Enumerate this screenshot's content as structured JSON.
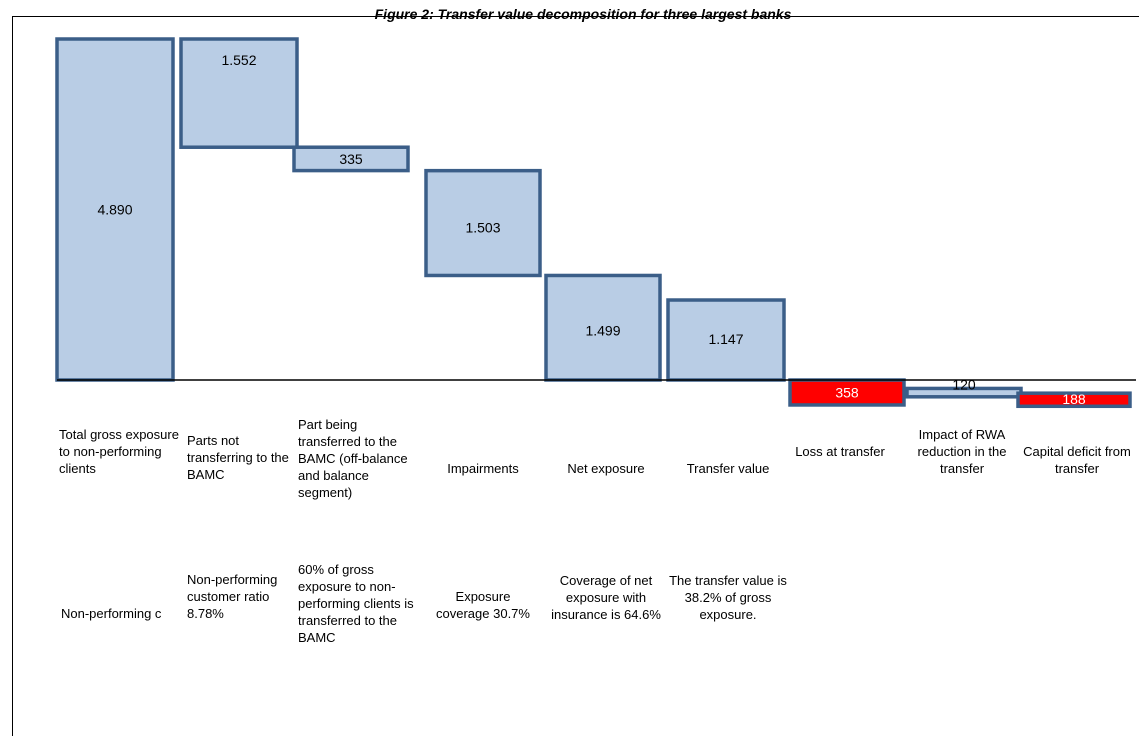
{
  "title": "Figure 2: Transfer value decomposition for three largest banks",
  "chart_data": {
    "type": "bar",
    "subtype": "waterfall",
    "categories": [
      "Total gross exposure to non-performing clients",
      "Parts not transferring to the BAMC",
      "Part being transferred to the BAMC (off-balance and balance segment)",
      "Impairments",
      "Net exposure",
      "Transfer value",
      "Loss at transfer",
      "Impact of RWA reduction in the transfer",
      "Capital deficit from transfer"
    ],
    "notes": [
      "Non-performing c",
      "Non-performing customer ratio 8.78%",
      "60% of gross exposure to non-performing clients is transferred to the BAMC",
      "Exposure coverage 30.7%",
      "Coverage of net exposure with insurance is 64.6%",
      "The transfer value is 38.2% of gross exposure.",
      "",
      "",
      ""
    ],
    "values": [
      4890,
      1552,
      335,
      1503,
      1499,
      1147,
      358,
      120,
      188
    ],
    "data_labels": [
      "4.890",
      "1.552",
      "335",
      "1.503",
      "1.499",
      "1.147",
      "358",
      "120",
      "188"
    ],
    "bar_low": [
      0,
      3338,
      3003,
      1499,
      0,
      0,
      -358,
      -241,
      -377
    ],
    "bar_high": [
      4890,
      4890,
      3338,
      3002,
      1499,
      1147,
      0,
      -121,
      -189
    ],
    "value_ticks": {
      "top": 4890,
      "bottom": -377
    },
    "colors": {
      "fill": "#b9cde5",
      "stroke": "#3b5e88",
      "loss_fill": "#ff0000",
      "loss_stroke": "#3b5e88"
    },
    "highlight_indices": [
      6,
      8
    ]
  }
}
